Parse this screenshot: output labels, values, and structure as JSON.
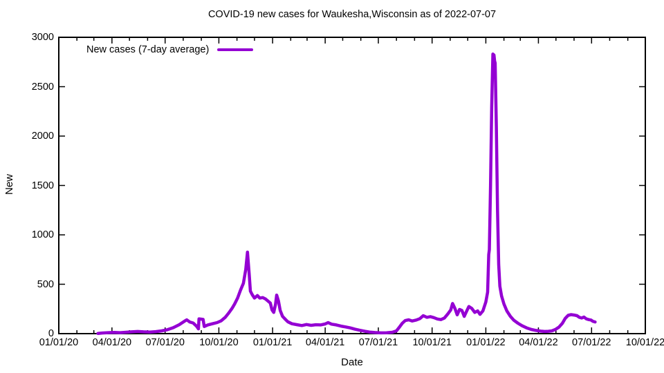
{
  "title": "COVID-19 new cases for Waukesha,Wisconsin as of 2022-07-07",
  "legend": {
    "label": "New cases (7-day average)"
  },
  "axes": {
    "x_label": "Date",
    "y_label": "New"
  },
  "colors": {
    "line": "#9400d3",
    "text": "#000000",
    "border": "#000000",
    "background": "#ffffff"
  },
  "chart_data": {
    "type": "line",
    "title": "COVID-19 new cases for Waukesha,Wisconsin as of 2022-07-07",
    "xlabel": "Date",
    "ylabel": "New",
    "grid": false,
    "legend_position": "top-left",
    "x_range": [
      "2020-01-01",
      "2022-10-01"
    ],
    "ylim": [
      0,
      3000
    ],
    "y_ticks": [
      0,
      500,
      1000,
      1500,
      2000,
      2500,
      3000
    ],
    "x_ticks": [
      {
        "label": "01/01/20",
        "date": "2020-01-01"
      },
      {
        "label": "04/01/20",
        "date": "2020-04-01"
      },
      {
        "label": "07/01/20",
        "date": "2020-07-01"
      },
      {
        "label": "10/01/20",
        "date": "2020-10-01"
      },
      {
        "label": "01/01/21",
        "date": "2021-01-01"
      },
      {
        "label": "04/01/21",
        "date": "2021-04-01"
      },
      {
        "label": "07/01/21",
        "date": "2021-07-01"
      },
      {
        "label": "10/01/21",
        "date": "2021-10-01"
      },
      {
        "label": "01/01/22",
        "date": "2022-01-01"
      },
      {
        "label": "04/01/22",
        "date": "2022-04-01"
      },
      {
        "label": "07/01/22",
        "date": "2022-07-01"
      },
      {
        "label": "10/01/22",
        "date": "2022-10-01"
      }
    ],
    "minor_x_ticks_unit": "month",
    "series": [
      {
        "name": "New cases (7-day average)",
        "color": "#9400d3",
        "x": [
          "2020-03-08",
          "2020-03-15",
          "2020-03-25",
          "2020-04-05",
          "2020-04-15",
          "2020-04-25",
          "2020-05-05",
          "2020-05-15",
          "2020-05-25",
          "2020-06-05",
          "2020-06-15",
          "2020-06-25",
          "2020-07-05",
          "2020-07-15",
          "2020-07-25",
          "2020-08-03",
          "2020-08-07",
          "2020-08-12",
          "2020-08-18",
          "2020-08-24",
          "2020-08-27",
          "2020-08-28",
          "2020-09-04",
          "2020-09-06",
          "2020-09-12",
          "2020-09-20",
          "2020-09-28",
          "2020-10-05",
          "2020-10-12",
          "2020-10-18",
          "2020-10-24",
          "2020-10-28",
          "2020-11-02",
          "2020-11-07",
          "2020-11-12",
          "2020-11-16",
          "2020-11-19",
          "2020-11-22",
          "2020-11-24",
          "2020-11-27",
          "2020-12-01",
          "2020-12-06",
          "2020-12-10",
          "2020-12-15",
          "2020-12-20",
          "2020-12-24",
          "2020-12-28",
          "2020-12-31",
          "2021-01-03",
          "2021-01-06",
          "2021-01-08",
          "2021-01-11",
          "2021-01-14",
          "2021-01-18",
          "2021-01-22",
          "2021-01-27",
          "2021-02-03",
          "2021-02-12",
          "2021-02-20",
          "2021-02-28",
          "2021-03-08",
          "2021-03-16",
          "2021-03-24",
          "2021-04-01",
          "2021-04-06",
          "2021-04-12",
          "2021-04-20",
          "2021-04-28",
          "2021-05-06",
          "2021-05-14",
          "2021-05-22",
          "2021-05-30",
          "2021-06-08",
          "2021-06-16",
          "2021-06-25",
          "2021-07-05",
          "2021-07-15",
          "2021-07-25",
          "2021-08-01",
          "2021-08-06",
          "2021-08-11",
          "2021-08-16",
          "2021-08-22",
          "2021-08-28",
          "2021-09-04",
          "2021-09-10",
          "2021-09-16",
          "2021-09-22",
          "2021-09-28",
          "2021-10-04",
          "2021-10-10",
          "2021-10-16",
          "2021-10-22",
          "2021-10-28",
          "2021-11-02",
          "2021-11-05",
          "2021-11-09",
          "2021-11-13",
          "2021-11-17",
          "2021-11-21",
          "2021-11-25",
          "2021-11-29",
          "2021-12-03",
          "2021-12-08",
          "2021-12-13",
          "2021-12-18",
          "2021-12-22",
          "2021-12-27",
          "2022-01-01",
          "2022-01-04",
          "2022-01-06",
          "2022-01-07",
          "2022-01-09",
          "2022-01-11",
          "2022-01-13",
          "2022-01-15",
          "2022-01-16",
          "2022-01-17",
          "2022-01-19",
          "2022-01-21",
          "2022-01-23",
          "2022-01-25",
          "2022-01-28",
          "2022-02-01",
          "2022-02-06",
          "2022-02-12",
          "2022-02-18",
          "2022-02-25",
          "2022-03-04",
          "2022-03-12",
          "2022-03-20",
          "2022-03-28",
          "2022-04-05",
          "2022-04-12",
          "2022-04-18",
          "2022-04-24",
          "2022-04-30",
          "2022-05-06",
          "2022-05-12",
          "2022-05-17",
          "2022-05-22",
          "2022-05-27",
          "2022-06-01",
          "2022-06-06",
          "2022-06-10",
          "2022-06-14",
          "2022-06-18",
          "2022-06-22",
          "2022-06-26",
          "2022-06-30",
          "2022-07-03",
          "2022-07-07"
        ],
        "values": [
          2,
          6,
          10,
          12,
          10,
          14,
          18,
          22,
          18,
          16,
          20,
          28,
          40,
          60,
          90,
          125,
          140,
          118,
          108,
          75,
          48,
          150,
          145,
          72,
          88,
          100,
          112,
          130,
          165,
          210,
          260,
          300,
          360,
          440,
          510,
          650,
          825,
          600,
          430,
          395,
          360,
          385,
          360,
          365,
          350,
          330,
          310,
          240,
          215,
          300,
          390,
          330,
          235,
          175,
          150,
          120,
          100,
          90,
          82,
          92,
          84,
          90,
          88,
          98,
          112,
          96,
          88,
          76,
          68,
          58,
          45,
          34,
          24,
          16,
          11,
          8,
          9,
          14,
          28,
          65,
          105,
          132,
          140,
          128,
          138,
          152,
          182,
          165,
          172,
          162,
          148,
          142,
          158,
          200,
          240,
          305,
          255,
          190,
          245,
          235,
          175,
          225,
          275,
          255,
          215,
          230,
          195,
          230,
          320,
          420,
          800,
          850,
          1500,
          2300,
          2830,
          2820,
          2760,
          2740,
          2100,
          1250,
          700,
          480,
          380,
          300,
          230,
          175,
          135,
          105,
          80,
          58,
          42,
          32,
          25,
          22,
          24,
          28,
          42,
          65,
          105,
          155,
          185,
          192,
          188,
          182,
          165,
          158,
          168,
          150,
          142,
          138,
          125,
          118
        ]
      }
    ]
  }
}
